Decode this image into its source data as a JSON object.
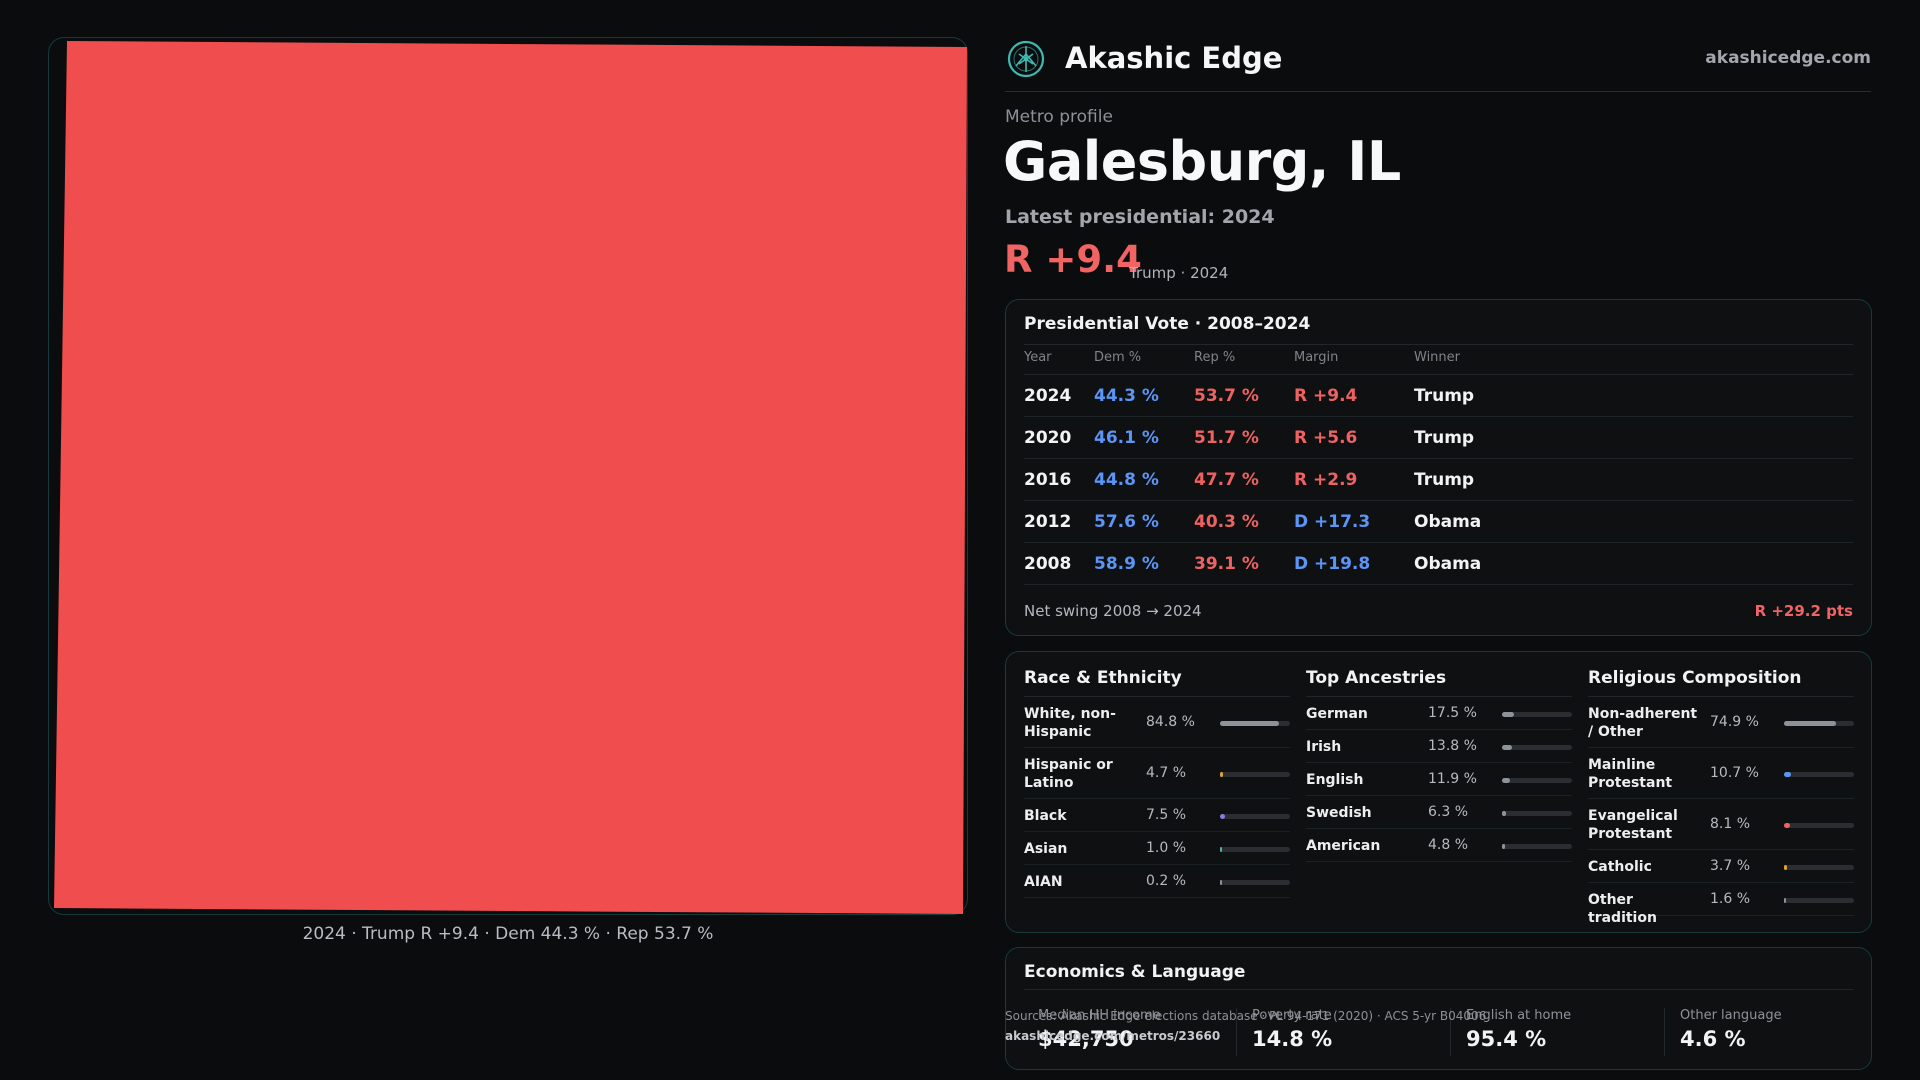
{
  "brand": {
    "name": "Akashic Edge",
    "url": "akashicedge.com"
  },
  "header": {
    "kicker": "Metro profile",
    "title": "Galesburg, IL",
    "latest": "Latest presidential: 2024",
    "margin": "R +9.4",
    "margin_note": "Trump · 2024"
  },
  "map": {
    "fill_color": "#f04e4e",
    "caption": "2024 · Trump R +9.4 · Dem 44.3 % · Rep 53.7 %"
  },
  "vote_table": {
    "title": "Presidential Vote · 2008–2024",
    "headers": [
      "Year",
      "Dem %",
      "Rep %",
      "Margin",
      "Winner"
    ],
    "rows": [
      {
        "year": "2024",
        "dem": "44.3 %",
        "rep": "53.7 %",
        "margin": "R +9.4",
        "winner": "Trump",
        "party": "R"
      },
      {
        "year": "2020",
        "dem": "46.1 %",
        "rep": "51.7 %",
        "margin": "R +5.6",
        "winner": "Trump",
        "party": "R"
      },
      {
        "year": "2016",
        "dem": "44.8 %",
        "rep": "47.7 %",
        "margin": "R +2.9",
        "winner": "Trump",
        "party": "R"
      },
      {
        "year": "2012",
        "dem": "57.6 %",
        "rep": "40.3 %",
        "margin": "D +17.3",
        "winner": "Obama",
        "party": "D"
      },
      {
        "year": "2008",
        "dem": "58.9 %",
        "rep": "39.1 %",
        "margin": "D +19.8",
        "winner": "Obama",
        "party": "D"
      }
    ],
    "swing_label": "Net swing 2008 → 2024",
    "swing_value": "R +29.2 pts"
  },
  "colors": {
    "dem": "#5b95f5",
    "rep": "#ee6262"
  },
  "demographics": [
    {
      "title": "Race & Ethnicity",
      "items": [
        {
          "label": "White, non-Hispanic",
          "pct": "84.8 %",
          "value": 84.8,
          "color": "#8d939b"
        },
        {
          "label": "Hispanic or Latino",
          "pct": "4.7 %",
          "value": 4.7,
          "color": "#e0a030"
        },
        {
          "label": "Black",
          "pct": "7.5 %",
          "value": 7.5,
          "color": "#8f7ae6"
        },
        {
          "label": "Asian",
          "pct": "1.0 %",
          "value": 1.0,
          "color": "#4fb3a9"
        },
        {
          "label": "AIAN",
          "pct": "0.2 %",
          "value": 0.2,
          "color": "#8d939b"
        }
      ]
    },
    {
      "title": "Top Ancestries",
      "items": [
        {
          "label": "German",
          "pct": "17.5 %",
          "value": 17.5,
          "color": "#8d939b"
        },
        {
          "label": "Irish",
          "pct": "13.8 %",
          "value": 13.8,
          "color": "#8d939b"
        },
        {
          "label": "English",
          "pct": "11.9 %",
          "value": 11.9,
          "color": "#8d939b"
        },
        {
          "label": "Swedish",
          "pct": "6.3 %",
          "value": 6.3,
          "color": "#8d939b"
        },
        {
          "label": "American",
          "pct": "4.8 %",
          "value": 4.8,
          "color": "#8d939b"
        }
      ]
    },
    {
      "title": "Religious Composition",
      "items": [
        {
          "label": "Non-adherent / Other",
          "pct": "74.9 %",
          "value": 74.9,
          "color": "#8d939b"
        },
        {
          "label": "Mainline Protestant",
          "pct": "10.7 %",
          "value": 10.7,
          "color": "#5b95f5"
        },
        {
          "label": "Evangelical Protestant",
          "pct": "8.1 %",
          "value": 8.1,
          "color": "#ee6262"
        },
        {
          "label": "Catholic",
          "pct": "3.7 %",
          "value": 3.7,
          "color": "#e0a030"
        },
        {
          "label": "Other tradition",
          "pct": "1.6 %",
          "value": 1.6,
          "color": "#8d939b"
        }
      ]
    }
  ],
  "economics": {
    "title": "Economics & Language",
    "items": [
      {
        "label": "Median HH income",
        "value": "$42,750"
      },
      {
        "label": "Poverty rate",
        "value": "14.8 %"
      },
      {
        "label": "English at home",
        "value": "95.4 %"
      },
      {
        "label": "Other language",
        "value": "4.6 %"
      }
    ]
  },
  "sources": {
    "text": "Sources: Akashic Edge elections database · PL 94-171 (2020) · ACS 5-yr B04006",
    "url": "akashicedge.com/metros/23660"
  }
}
